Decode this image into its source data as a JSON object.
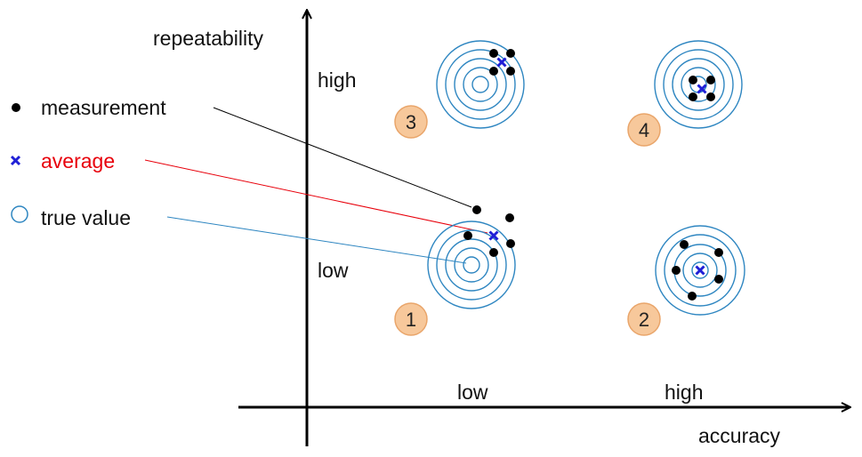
{
  "axes": {
    "x_label": "accuracy",
    "y_label": "repeatability",
    "x_ticks": [
      "low",
      "high"
    ],
    "y_ticks": [
      "low",
      "high"
    ]
  },
  "legend": [
    {
      "symbol": "dot",
      "label": "measurement",
      "color": "#000000"
    },
    {
      "symbol": "cross",
      "label": "average",
      "color": "#e8000b",
      "symbol_color": "#1f1fd6"
    },
    {
      "symbol": "circle",
      "label": "true value",
      "color": "#111111",
      "symbol_color": "#2e86c1"
    }
  ],
  "quadrants": [
    {
      "number": "1",
      "accuracy": "low",
      "repeatability": "low"
    },
    {
      "number": "2",
      "accuracy": "high",
      "repeatability": "low"
    },
    {
      "number": "3",
      "accuracy": "low",
      "repeatability": "high"
    },
    {
      "number": "4",
      "accuracy": "high",
      "repeatability": "high"
    }
  ],
  "colors": {
    "target_ring": "#2e86c1",
    "average_marker": "#1f1fd6",
    "measurement_dot": "#000000",
    "badge_fill": "#f7c89b",
    "badge_stroke": "#e9a56a",
    "line_measurement": "#000000",
    "line_average": "#e8000b",
    "line_true_value": "#2e86c1"
  }
}
